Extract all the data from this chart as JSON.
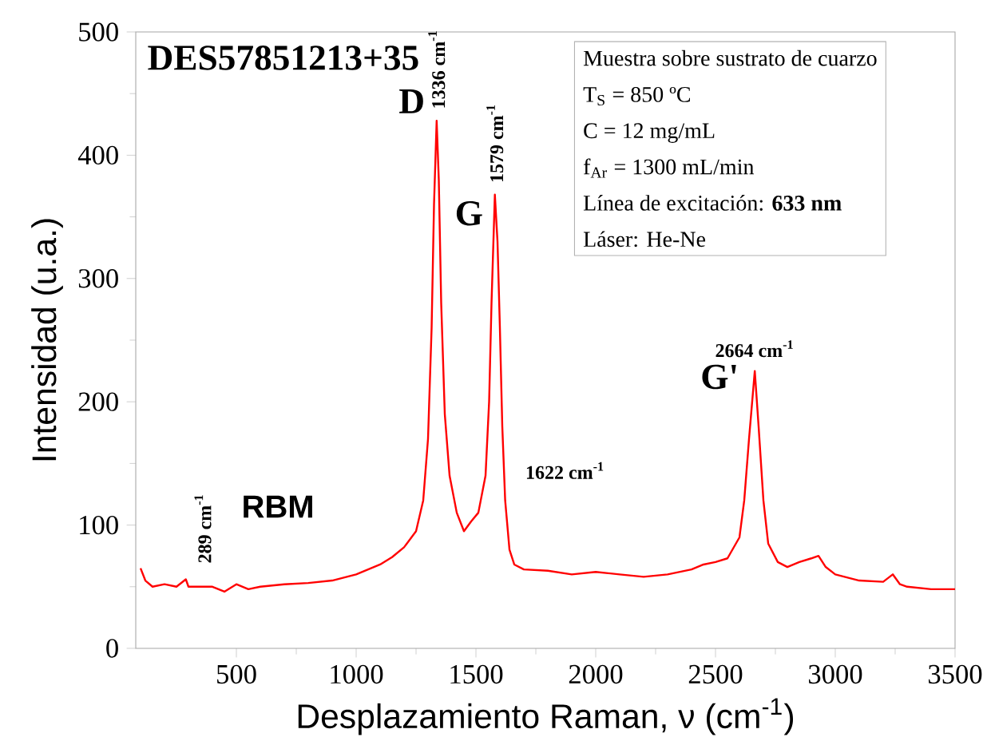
{
  "chart_data": {
    "type": "line",
    "title": "DES57851213+35",
    "xlabel": "Desplazamiento Raman, ν (cm$^{-1}$)",
    "ylabel": "Intensidad (u.a.)",
    "x": [
      100,
      120,
      150,
      200,
      250,
      289,
      300,
      400,
      450,
      500,
      550,
      600,
      700,
      800,
      900,
      1000,
      1100,
      1150,
      1200,
      1250,
      1280,
      1300,
      1315,
      1325,
      1336,
      1345,
      1355,
      1370,
      1390,
      1420,
      1450,
      1480,
      1510,
      1540,
      1555,
      1565,
      1579,
      1590,
      1600,
      1610,
      1622,
      1640,
      1660,
      1700,
      1800,
      1900,
      2000,
      2100,
      2200,
      2300,
      2400,
      2450,
      2500,
      2550,
      2600,
      2620,
      2640,
      2664,
      2680,
      2700,
      2720,
      2760,
      2800,
      2850,
      2900,
      2930,
      2960,
      3000,
      3100,
      3200,
      3240,
      3270,
      3300,
      3400,
      3500
    ],
    "series": [
      {
        "color": "#ff0000",
        "values": [
          65,
          55,
          50,
          52,
          50,
          56,
          50,
          50,
          46,
          52,
          48,
          50,
          52,
          53,
          55,
          60,
          68,
          74,
          82,
          95,
          120,
          170,
          260,
          360,
          428,
          380,
          280,
          190,
          140,
          110,
          95,
          103,
          110,
          140,
          200,
          280,
          368,
          330,
          260,
          180,
          120,
          80,
          68,
          64,
          63,
          60,
          62,
          60,
          58,
          60,
          64,
          68,
          70,
          73,
          90,
          120,
          170,
          225,
          180,
          120,
          85,
          70,
          66,
          70,
          73,
          75,
          66,
          60,
          55,
          54,
          60,
          52,
          50,
          48,
          48
        ]
      }
    ],
    "xlim": [
      80,
      3500
    ],
    "ylim": [
      0,
      500
    ],
    "xticks": [
      500,
      1000,
      1500,
      2000,
      2500,
      3000,
      3500
    ],
    "yticks": [
      0,
      100,
      200,
      300,
      400,
      500
    ],
    "grid": false,
    "marker": "none",
    "line_style": "solid",
    "annotations": [
      {
        "text": "D",
        "x": 1336,
        "y": 428
      },
      {
        "text": "1336 cm$^{-1}$",
        "x": 1336,
        "y": 428
      },
      {
        "text": "G",
        "x": 1579,
        "y": 368
      },
      {
        "text": "1579 cm$^{-1}$",
        "x": 1579,
        "y": 368
      },
      {
        "text": "G'",
        "x": 2664,
        "y": 225
      },
      {
        "text": "2664 cm$^{-1}$",
        "x": 2664,
        "y": 225
      },
      {
        "text": "1622 cm$^{-1}$",
        "x": 1622,
        "y": 120
      },
      {
        "text": "289 cm$^{-1}$",
        "x": 289,
        "y": 56
      },
      "RBM",
      "Muestra sobre sustrato de cuarzo",
      "T$_{S}$ =  850  ºC",
      "C = 12 mg/mL",
      "f$_{Ar}$ = 1300 mL/min",
      "Línea de excitación: **633 nm**",
      "Láser: He-Ne"
    ]
  }
}
